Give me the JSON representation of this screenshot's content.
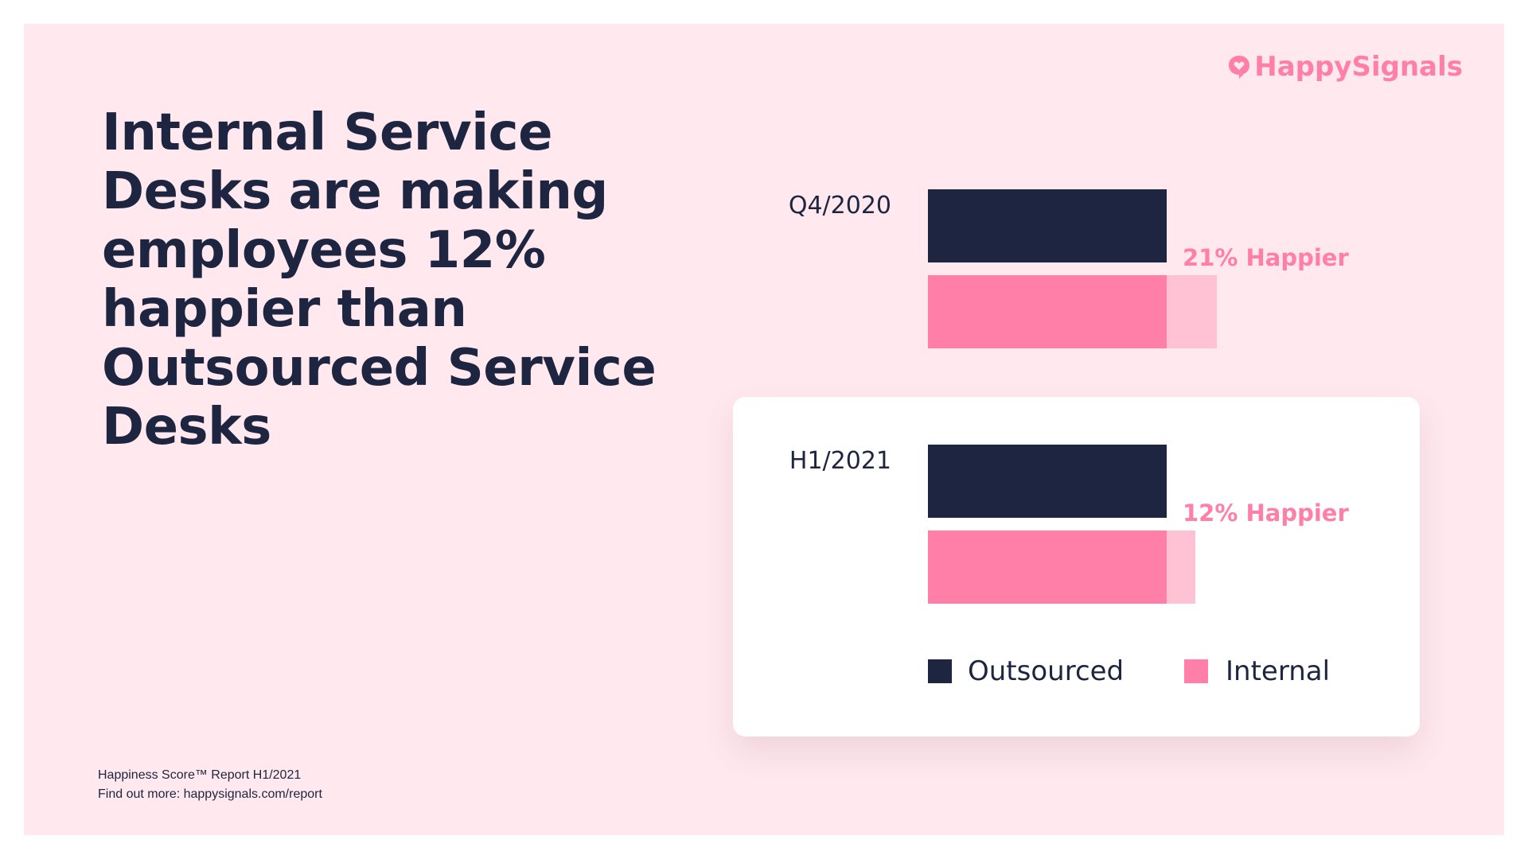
{
  "brand": {
    "name": "HappySignals",
    "accent": "#ff7fa8"
  },
  "headline": "Internal Service Desks are making employees 12% happier than Outsourced Service Desks",
  "footer": {
    "line1": "Happiness Score™ Report H1/2021",
    "line2": "Find out more: happysignals.com/report"
  },
  "chart_data": {
    "type": "bar",
    "orientation": "horizontal",
    "title": "",
    "xlabel": "",
    "ylabel": "",
    "grid": false,
    "legend_position": "bottom",
    "categories": [
      "Q4/2020",
      "H1/2021"
    ],
    "series": [
      {
        "name": "Outsourced",
        "color": "#1e2540",
        "values": [
          100,
          100
        ]
      },
      {
        "name": "Internal",
        "color": "#ff7fa8",
        "extension_color": "#ffc2d4",
        "values": [
          121,
          112
        ]
      }
    ],
    "annotations": [
      "21% Happier",
      "12% Happier"
    ],
    "highlighted_category": "H1/2021"
  }
}
